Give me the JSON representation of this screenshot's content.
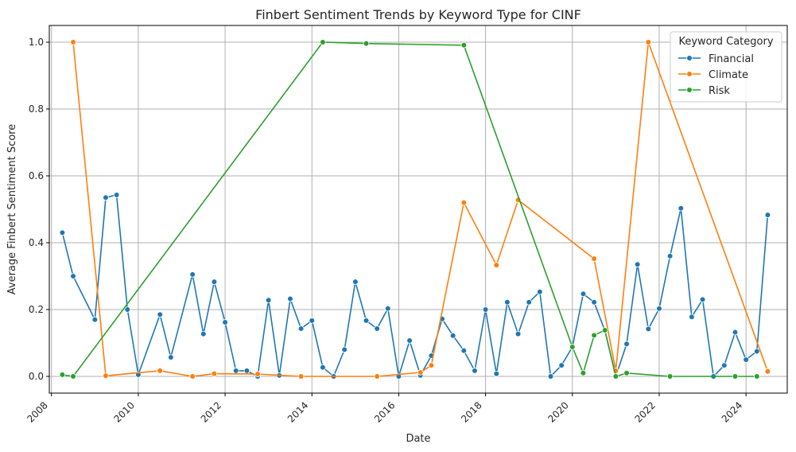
{
  "chart_data": {
    "type": "line",
    "title": "Finbert Sentiment Trends by Keyword Type for CINF",
    "xlabel": "Date",
    "ylabel": "Average Finbert Sentiment Score",
    "xlim": [
      2007.95,
      2024.95
    ],
    "ylim": [
      -0.05,
      1.05
    ],
    "x_ticks": [
      2008,
      2010,
      2012,
      2014,
      2016,
      2018,
      2020,
      2022,
      2024
    ],
    "y_ticks": [
      0.0,
      0.2,
      0.4,
      0.6,
      0.8,
      1.0
    ],
    "grid": true,
    "legend": {
      "title": "Keyword Category",
      "placement": "top-right"
    },
    "series": [
      {
        "name": "Financial",
        "color": "#1f77b4",
        "x": [
          2008.25,
          2008.5,
          2009.0,
          2009.25,
          2009.5,
          2009.75,
          2010.0,
          2010.5,
          2010.75,
          2011.25,
          2011.5,
          2011.75,
          2012.0,
          2012.25,
          2012.5,
          2012.75,
          2013.0,
          2013.25,
          2013.5,
          2013.75,
          2014.0,
          2014.25,
          2014.5,
          2014.75,
          2015.0,
          2015.25,
          2015.5,
          2015.75,
          2016.0,
          2016.25,
          2016.5,
          2016.75,
          2017.0,
          2017.25,
          2017.5,
          2017.75,
          2018.0,
          2018.25,
          2018.5,
          2018.75,
          2019.0,
          2019.25,
          2019.5,
          2019.75,
          2020.0,
          2020.25,
          2020.5,
          2020.75,
          2021.0,
          2021.25,
          2021.5,
          2021.75,
          2022.0,
          2022.25,
          2022.5,
          2022.75,
          2023.0,
          2023.25,
          2023.5,
          2023.75,
          2024.0,
          2024.25,
          2024.5
        ],
        "y": [
          0.43,
          0.3,
          0.17,
          0.535,
          0.543,
          0.2,
          0.005,
          0.185,
          0.057,
          0.305,
          0.127,
          0.283,
          0.162,
          0.017,
          0.017,
          0.0,
          0.228,
          0.003,
          0.232,
          0.143,
          0.167,
          0.027,
          0.0,
          0.08,
          0.283,
          0.167,
          0.143,
          0.203,
          0.0,
          0.107,
          0.003,
          0.062,
          0.172,
          0.122,
          0.077,
          0.017,
          0.2,
          0.008,
          0.222,
          0.127,
          0.222,
          0.253,
          0.0,
          0.033,
          0.088,
          0.247,
          0.222,
          0.137,
          0.0,
          0.097,
          0.335,
          0.142,
          0.203,
          0.36,
          0.503,
          0.178,
          0.23,
          0.0,
          0.033,
          0.132,
          0.05,
          0.075,
          0.483
        ]
      },
      {
        "name": "Climate",
        "color": "#ff7f0e",
        "x": [
          2008.5,
          2009.25,
          2010.5,
          2011.25,
          2011.75,
          2012.75,
          2013.75,
          2015.5,
          2016.5,
          2016.75,
          2017.5,
          2018.25,
          2018.75,
          2020.5,
          2021.0,
          2021.75,
          2024.5
        ],
        "y": [
          1.0,
          0.002,
          0.017,
          0.0,
          0.008,
          0.007,
          0.0,
          0.0,
          0.012,
          0.033,
          0.52,
          0.333,
          0.528,
          0.352,
          0.017,
          1.0,
          0.015
        ]
      },
      {
        "name": "Risk",
        "color": "#2ca02c",
        "x": [
          2008.25,
          2008.5,
          2014.25,
          2015.25,
          2017.5,
          2020.0,
          2020.25,
          2020.5,
          2020.75,
          2021.0,
          2021.25,
          2022.25,
          2023.75,
          2024.25
        ],
        "y": [
          0.005,
          0.0,
          1.0,
          0.996,
          0.991,
          0.088,
          0.01,
          0.123,
          0.138,
          0.0,
          0.01,
          0.0,
          0.0,
          0.0
        ]
      }
    ]
  }
}
